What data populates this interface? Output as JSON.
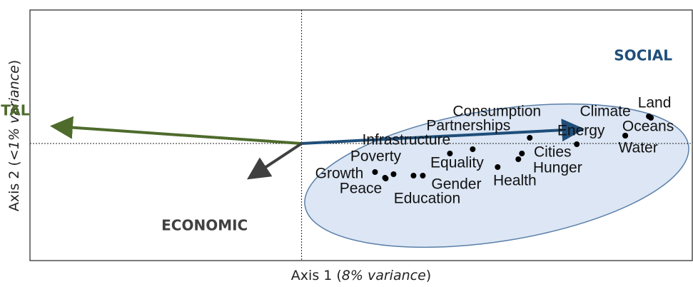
{
  "chart_data": {
    "type": "scatter",
    "xlabel": [
      "Axis 1 (",
      "8% variance",
      ")"
    ],
    "ylabel": [
      "Axis 2 (",
      "<1% variance",
      ")"
    ],
    "xlim": [
      -3.81,
      5.48
    ],
    "ylim": [
      -1.64,
      1.87
    ],
    "color": "#000000",
    "labels": [
      "Land",
      "Oceans",
      "Water",
      "Climate",
      "Energy",
      "Consumption",
      "Partnerships",
      "Infrastructure",
      "Cities",
      "Hunger",
      "Health",
      "Equality",
      "Gender",
      "Poverty",
      "Growth",
      "Peace",
      "Education"
    ],
    "x": [
      4.87,
      4.9,
      4.54,
      4.54,
      3.86,
      3.2,
      2.4,
      2.08,
      3.09,
      3.04,
      2.75,
      1.7,
      1.57,
      1.29,
      1.03,
      1.17,
      1.18
    ],
    "y": [
      0.38,
      0.36,
      0.11,
      0.11,
      -0.01,
      0.08,
      -0.08,
      -0.14,
      -0.14,
      -0.22,
      -0.33,
      -0.45,
      -0.45,
      -0.43,
      -0.4,
      -0.48,
      -0.49
    ],
    "vectors": [
      {
        "name": "SOCIAL",
        "color": "#1f4e79",
        "x": 3.89,
        "y": 0.2
      },
      {
        "name": "ENVIRONMENTAL",
        "color": "#4e6b2c",
        "x": -3.45,
        "y": 0.24
      },
      {
        "name": "ECONOMIC",
        "color": "#404040",
        "x": -0.7,
        "y": -0.46
      }
    ]
  }
}
